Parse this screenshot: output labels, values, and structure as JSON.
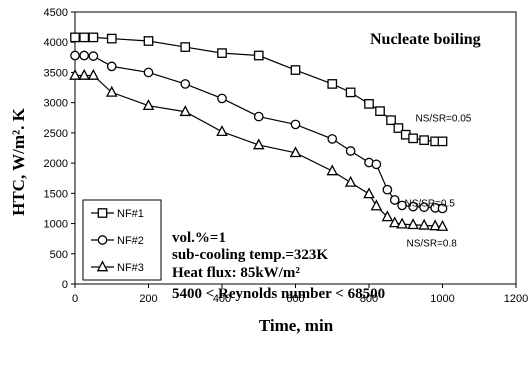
{
  "chart_data": {
    "type": "line",
    "title": "Nucleate boiling",
    "xlabel": "Time, min",
    "ylabel": "HTC, W/m². K",
    "xlim": [
      0,
      1200
    ],
    "ylim": [
      0,
      4500
    ],
    "xticks": [
      0,
      200,
      400,
      600,
      800,
      1000,
      1200
    ],
    "yticks": [
      0,
      500,
      1000,
      1500,
      2000,
      2500,
      3000,
      3500,
      4000,
      4500
    ],
    "grid": false,
    "legend_position": "left",
    "series": [
      {
        "name": "NF#1",
        "marker": "square",
        "end_label": "NS/SR=0.05",
        "points": [
          [
            0,
            4080
          ],
          [
            25,
            4080
          ],
          [
            50,
            4080
          ],
          [
            100,
            4060
          ],
          [
            200,
            4020
          ],
          [
            300,
            3920
          ],
          [
            400,
            3820
          ],
          [
            500,
            3780
          ],
          [
            600,
            3540
          ],
          [
            700,
            3310
          ],
          [
            750,
            3170
          ],
          [
            800,
            2980
          ],
          [
            830,
            2860
          ],
          [
            860,
            2710
          ],
          [
            880,
            2580
          ],
          [
            900,
            2470
          ],
          [
            920,
            2410
          ],
          [
            950,
            2380
          ],
          [
            980,
            2360
          ],
          [
            1000,
            2360
          ]
        ]
      },
      {
        "name": "NF#2",
        "marker": "circle",
        "end_label": "NS/SR=0.5",
        "points": [
          [
            0,
            3780
          ],
          [
            25,
            3780
          ],
          [
            50,
            3770
          ],
          [
            100,
            3600
          ],
          [
            200,
            3500
          ],
          [
            300,
            3310
          ],
          [
            400,
            3070
          ],
          [
            500,
            2770
          ],
          [
            600,
            2640
          ],
          [
            700,
            2400
          ],
          [
            750,
            2200
          ],
          [
            800,
            2010
          ],
          [
            820,
            1980
          ],
          [
            850,
            1560
          ],
          [
            870,
            1390
          ],
          [
            890,
            1300
          ],
          [
            920,
            1280
          ],
          [
            950,
            1270
          ],
          [
            980,
            1260
          ],
          [
            1000,
            1250
          ]
        ]
      },
      {
        "name": "NF#3",
        "marker": "triangle",
        "end_label": "NS/SR=0.8",
        "points": [
          [
            0,
            3450
          ],
          [
            25,
            3450
          ],
          [
            50,
            3450
          ],
          [
            100,
            3170
          ],
          [
            200,
            2950
          ],
          [
            300,
            2850
          ],
          [
            400,
            2520
          ],
          [
            500,
            2300
          ],
          [
            600,
            2170
          ],
          [
            700,
            1870
          ],
          [
            750,
            1680
          ],
          [
            800,
            1490
          ],
          [
            820,
            1290
          ],
          [
            850,
            1110
          ],
          [
            870,
            1010
          ],
          [
            890,
            990
          ],
          [
            920,
            980
          ],
          [
            950,
            970
          ],
          [
            980,
            960
          ],
          [
            1000,
            950
          ]
        ]
      }
    ],
    "annotations": [
      "vol.%=1",
      "sub-cooling temp.=323K",
      "Heat flux: 85kW/m²",
      "5400 < Reynolds number < 68500"
    ]
  }
}
